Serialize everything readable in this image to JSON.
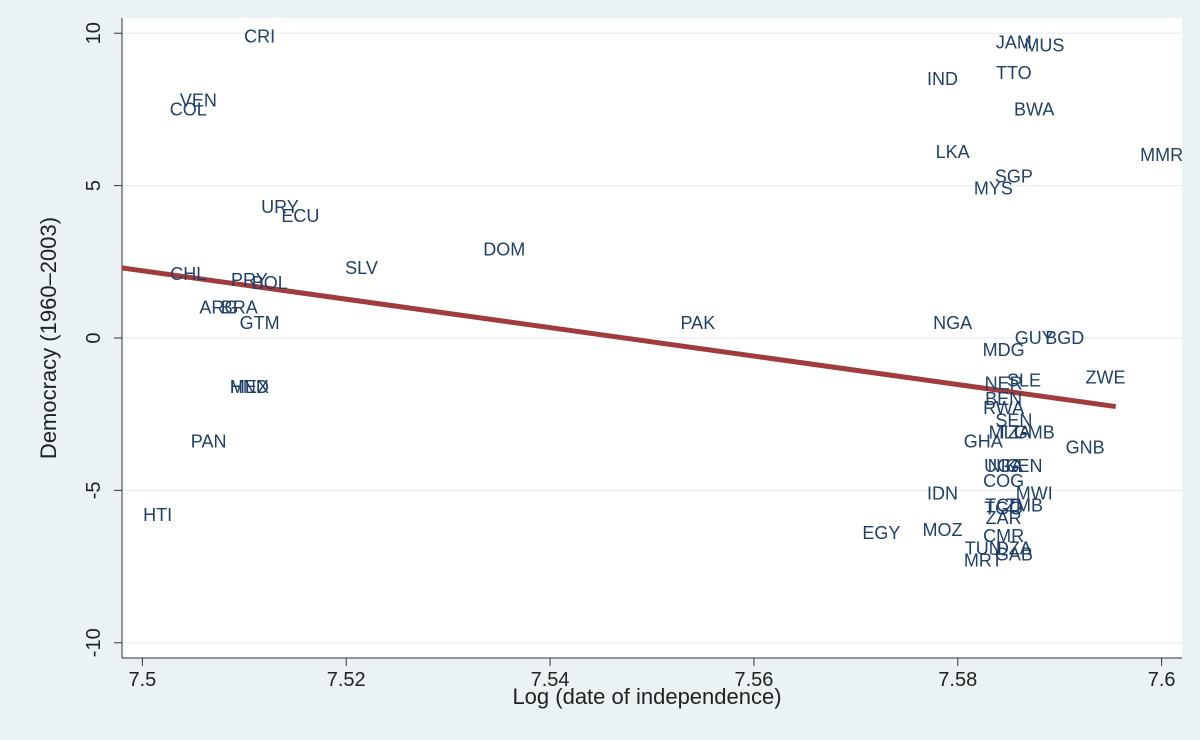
{
  "chart_data": {
    "type": "scatter",
    "title": "",
    "xlabel": "Log (date of independence)",
    "ylabel": "Democracy (1960–2003)",
    "xlim": [
      7.498,
      7.602
    ],
    "ylim": [
      -10.5,
      10.5
    ],
    "xticks": [
      "7.5",
      "7.52",
      "7.54",
      "7.56",
      "7.58",
      "7.6"
    ],
    "yticks": [
      "10",
      "5",
      "0",
      "-5",
      "-10"
    ],
    "grid": "horizontal",
    "marker": "country code label",
    "colors": {
      "plot_bg": "#ffffff",
      "outer_bg": "#eaf2f3",
      "labels": "#1f3f6b",
      "fit_line": "#a23b3b",
      "grid": "#e7eef0"
    },
    "points": [
      {
        "label": "CRI",
        "x": 7.5115,
        "y": 9.9
      },
      {
        "label": "VEN",
        "x": 7.5055,
        "y": 7.8
      },
      {
        "label": "COL",
        "x": 7.5045,
        "y": 7.5
      },
      {
        "label": "URY",
        "x": 7.5135,
        "y": 4.3
      },
      {
        "label": "ECU",
        "x": 7.5155,
        "y": 4.0
      },
      {
        "label": "DOM",
        "x": 7.5355,
        "y": 2.9
      },
      {
        "label": "SLV",
        "x": 7.5215,
        "y": 2.3
      },
      {
        "label": "CHL",
        "x": 7.5045,
        "y": 2.1
      },
      {
        "label": "PRY",
        "x": 7.5105,
        "y": 1.9
      },
      {
        "label": "BOL",
        "x": 7.5125,
        "y": 1.8
      },
      {
        "label": "ARG",
        "x": 7.5075,
        "y": 1.0
      },
      {
        "label": "BRA",
        "x": 7.5095,
        "y": 1.0
      },
      {
        "label": "GTM",
        "x": 7.5115,
        "y": 0.5
      },
      {
        "label": "MEX",
        "x": 7.5105,
        "y": -1.6
      },
      {
        "label": "HND",
        "x": 7.5105,
        "y": -1.6
      },
      {
        "label": "PAN",
        "x": 7.5065,
        "y": -3.4
      },
      {
        "label": "HTI",
        "x": 7.5015,
        "y": -5.8
      },
      {
        "label": "PAK",
        "x": 7.5545,
        "y": 0.5
      },
      {
        "label": "JAM",
        "x": 7.5855,
        "y": 9.7
      },
      {
        "label": "MUS",
        "x": 7.5885,
        "y": 9.6
      },
      {
        "label": "IND",
        "x": 7.5785,
        "y": 8.5
      },
      {
        "label": "TTO",
        "x": 7.5855,
        "y": 8.7
      },
      {
        "label": "BWA",
        "x": 7.5875,
        "y": 7.5
      },
      {
        "label": "MMR",
        "x": 7.6,
        "y": 6.0
      },
      {
        "label": "LKA",
        "x": 7.5795,
        "y": 6.1
      },
      {
        "label": "SGP",
        "x": 7.5855,
        "y": 5.3
      },
      {
        "label": "MYS",
        "x": 7.5835,
        "y": 4.9
      },
      {
        "label": "NGA",
        "x": 7.5795,
        "y": 0.5
      },
      {
        "label": "GUY",
        "x": 7.5875,
        "y": 0.0
      },
      {
        "label": "BGD",
        "x": 7.5905,
        "y": 0.0
      },
      {
        "label": "MDG",
        "x": 7.5845,
        "y": -0.4
      },
      {
        "label": "SLE",
        "x": 7.5865,
        "y": -1.4
      },
      {
        "label": "NER",
        "x": 7.5845,
        "y": -1.5
      },
      {
        "label": "ZWE",
        "x": 7.5945,
        "y": -1.3
      },
      {
        "label": "BEN",
        "x": 7.5845,
        "y": -2.0
      },
      {
        "label": "RWA",
        "x": 7.5845,
        "y": -2.3
      },
      {
        "label": "SEN",
        "x": 7.5855,
        "y": -2.7
      },
      {
        "label": "MLI",
        "x": 7.5845,
        "y": -3.1
      },
      {
        "label": "TZA",
        "x": 7.5855,
        "y": -3.1
      },
      {
        "label": "GMB",
        "x": 7.5875,
        "y": -3.1
      },
      {
        "label": "GHA",
        "x": 7.5825,
        "y": -3.4
      },
      {
        "label": "GNB",
        "x": 7.5925,
        "y": -3.6
      },
      {
        "label": "UGA",
        "x": 7.5845,
        "y": -4.2
      },
      {
        "label": "KEN",
        "x": 7.5865,
        "y": -4.2
      },
      {
        "label": "NIG",
        "x": 7.5845,
        "y": -4.2
      },
      {
        "label": "COG",
        "x": 7.5845,
        "y": -4.7
      },
      {
        "label": "MWI",
        "x": 7.5875,
        "y": -5.1
      },
      {
        "label": "IDN",
        "x": 7.5785,
        "y": -5.1
      },
      {
        "label": "TCD",
        "x": 7.5845,
        "y": -5.5
      },
      {
        "label": "TGO",
        "x": 7.5845,
        "y": -5.6
      },
      {
        "label": "ZMB",
        "x": 7.5865,
        "y": -5.5
      },
      {
        "label": "ZAR",
        "x": 7.5845,
        "y": -5.9
      },
      {
        "label": "EGY",
        "x": 7.5725,
        "y": -6.4
      },
      {
        "label": "MOZ",
        "x": 7.5785,
        "y": -6.3
      },
      {
        "label": "CMR",
        "x": 7.5845,
        "y": -6.5
      },
      {
        "label": "TUN",
        "x": 7.5825,
        "y": -6.9
      },
      {
        "label": "DZA",
        "x": 7.5855,
        "y": -6.9
      },
      {
        "label": "GAB",
        "x": 7.5855,
        "y": -7.1
      },
      {
        "label": "MRT",
        "x": 7.5825,
        "y": -7.3
      }
    ],
    "fit_line": {
      "x": [
        7.498,
        7.5955
      ],
      "y": [
        2.3,
        -2.25
      ]
    }
  }
}
